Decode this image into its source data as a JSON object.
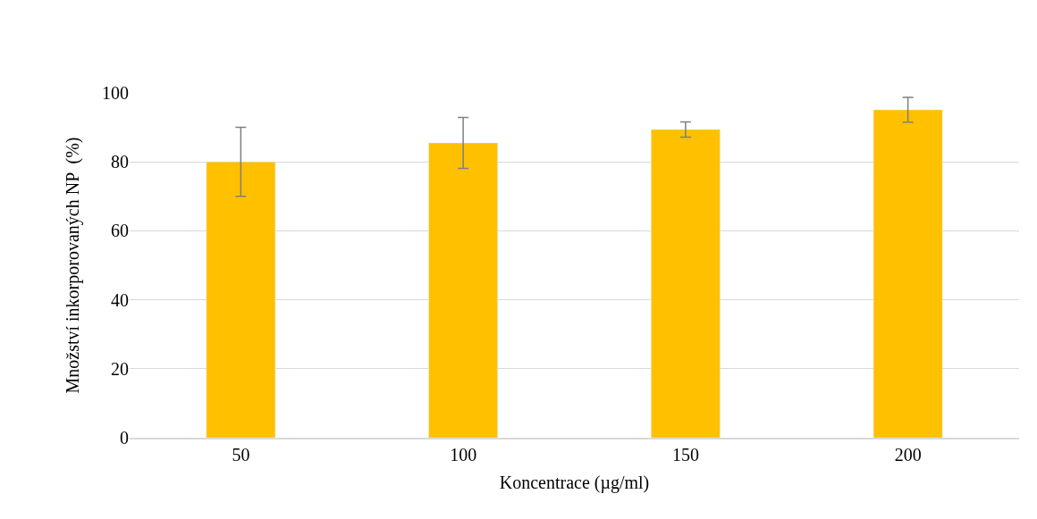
{
  "chart_data": {
    "type": "bar",
    "xlabel": "Koncentrace (µg/ml)",
    "ylabel": "Množství inkorporovaných NP  (%)",
    "categories": [
      "50",
      "100",
      "150",
      "200"
    ],
    "values": [
      80,
      85.5,
      89.4,
      95.1
    ],
    "errors": [
      10,
      7.4,
      2.2,
      3.6
    ],
    "color": "#ffc000",
    "ylim": [
      0,
      100
    ],
    "yticks": [
      0,
      20,
      40,
      60,
      80,
      100
    ],
    "grid": "y"
  }
}
